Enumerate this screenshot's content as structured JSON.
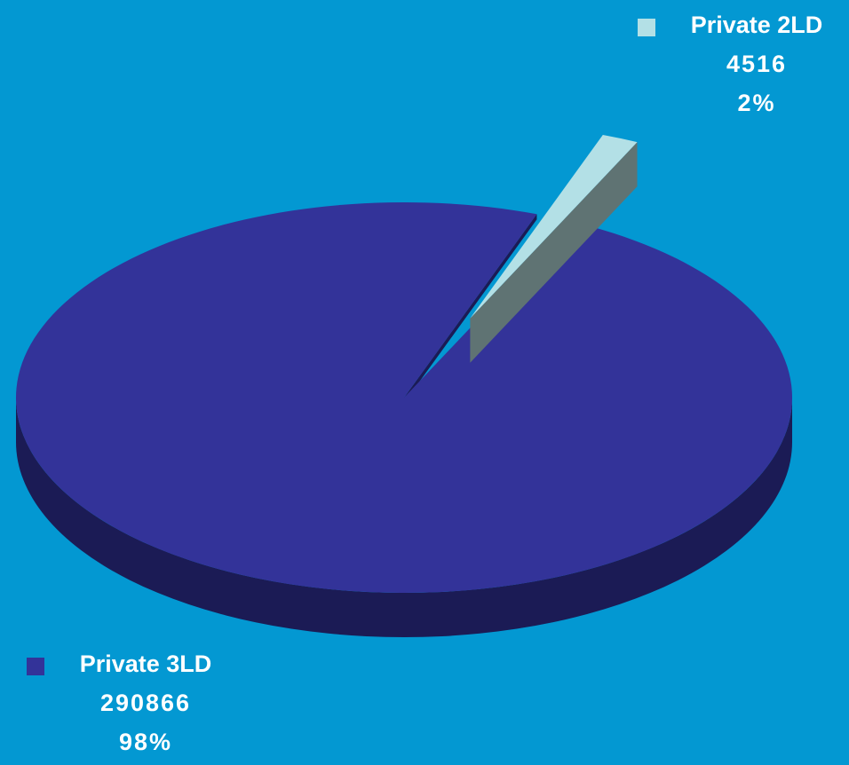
{
  "chart_data": {
    "type": "pie",
    "categories": [
      "Private 2LD",
      "Private 3LD"
    ],
    "values": [
      4516,
      290866
    ],
    "percent_labels": [
      "2%",
      "98%"
    ],
    "colors": [
      "#b3e0e6",
      "#333399"
    ],
    "side_colors": [
      "#5f7373",
      "#1b1b55"
    ]
  }
}
